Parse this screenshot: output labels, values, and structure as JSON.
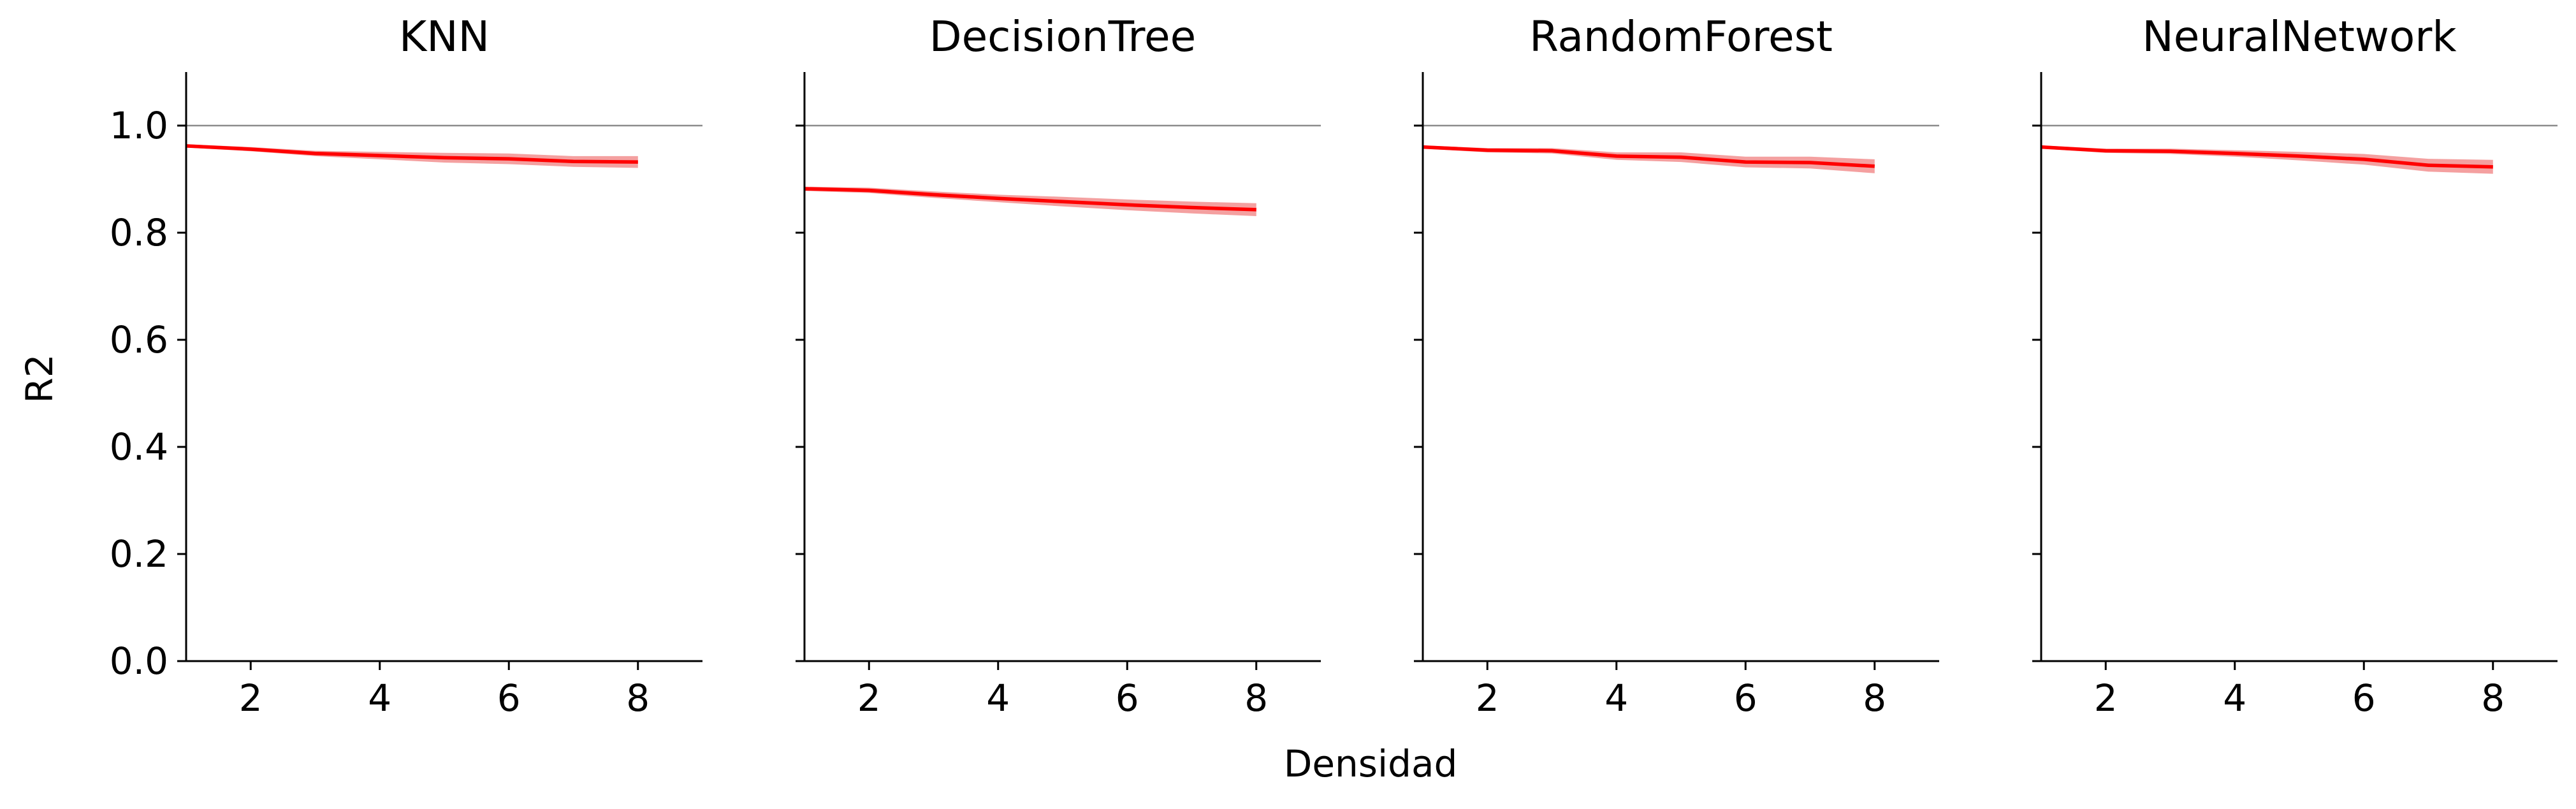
{
  "figure": {
    "xlabel": "Densidad",
    "ylabel": "R2"
  },
  "chart_data": [
    {
      "type": "line",
      "title": "KNN",
      "xlim": [
        1,
        9
      ],
      "ylim": [
        0.0,
        1.1
      ],
      "xticks": [
        2,
        4,
        6,
        8
      ],
      "yticks": [
        0.0,
        0.2,
        0.4,
        0.6,
        0.8,
        1.0
      ],
      "reference_line": 1.0,
      "grid": false,
      "series": [
        {
          "color": "#ff0000",
          "band_color": "#f08080",
          "x": [
            1,
            2,
            3,
            4,
            5,
            6,
            7,
            8
          ],
          "y": [
            0.962,
            0.956,
            0.948,
            0.944,
            0.94,
            0.938,
            0.933,
            0.932
          ],
          "lower": [
            0.959,
            0.952,
            0.943,
            0.937,
            0.931,
            0.928,
            0.923,
            0.921
          ],
          "upper": [
            0.965,
            0.96,
            0.953,
            0.951,
            0.949,
            0.948,
            0.943,
            0.943
          ]
        }
      ]
    },
    {
      "type": "line",
      "title": "DecisionTree",
      "xlim": [
        1,
        9
      ],
      "ylim": [
        0.0,
        1.1
      ],
      "xticks": [
        2,
        4,
        6,
        8
      ],
      "yticks": [
        0.0,
        0.2,
        0.4,
        0.6,
        0.8,
        1.0
      ],
      "reference_line": 1.0,
      "grid": false,
      "series": [
        {
          "color": "#ff0000",
          "band_color": "#f08080",
          "x": [
            1,
            2,
            3,
            4,
            5,
            6,
            7,
            8
          ],
          "y": [
            0.882,
            0.879,
            0.871,
            0.864,
            0.858,
            0.852,
            0.847,
            0.843
          ],
          "lower": [
            0.878,
            0.874,
            0.865,
            0.857,
            0.849,
            0.842,
            0.836,
            0.831
          ],
          "upper": [
            0.886,
            0.884,
            0.877,
            0.871,
            0.867,
            0.862,
            0.858,
            0.855
          ]
        }
      ]
    },
    {
      "type": "line",
      "title": "RandomForest",
      "xlim": [
        1,
        9
      ],
      "ylim": [
        0.0,
        1.1
      ],
      "xticks": [
        2,
        4,
        6,
        8
      ],
      "yticks": [
        0.0,
        0.2,
        0.4,
        0.6,
        0.8,
        1.0
      ],
      "reference_line": 1.0,
      "grid": false,
      "series": [
        {
          "color": "#ff0000",
          "band_color": "#f08080",
          "x": [
            1,
            2,
            3,
            4,
            5,
            6,
            7,
            8
          ],
          "y": [
            0.96,
            0.954,
            0.953,
            0.943,
            0.941,
            0.932,
            0.931,
            0.924
          ],
          "lower": [
            0.957,
            0.95,
            0.948,
            0.936,
            0.932,
            0.922,
            0.92,
            0.911
          ],
          "upper": [
            0.963,
            0.958,
            0.958,
            0.95,
            0.95,
            0.942,
            0.942,
            0.937
          ]
        }
      ]
    },
    {
      "type": "line",
      "title": "NeuralNetwork",
      "xlim": [
        1,
        9
      ],
      "ylim": [
        0.0,
        1.1
      ],
      "xticks": [
        2,
        4,
        6,
        8
      ],
      "yticks": [
        0.0,
        0.2,
        0.4,
        0.6,
        0.8,
        1.0
      ],
      "reference_line": 1.0,
      "grid": false,
      "series": [
        {
          "color": "#ff0000",
          "band_color": "#f08080",
          "x": [
            1,
            2,
            3,
            4,
            5,
            6,
            7,
            8
          ],
          "y": [
            0.96,
            0.953,
            0.952,
            0.948,
            0.943,
            0.937,
            0.926,
            0.923
          ],
          "lower": [
            0.957,
            0.949,
            0.947,
            0.942,
            0.935,
            0.927,
            0.914,
            0.91
          ],
          "upper": [
            0.963,
            0.957,
            0.957,
            0.954,
            0.951,
            0.947,
            0.938,
            0.936
          ]
        }
      ]
    }
  ]
}
